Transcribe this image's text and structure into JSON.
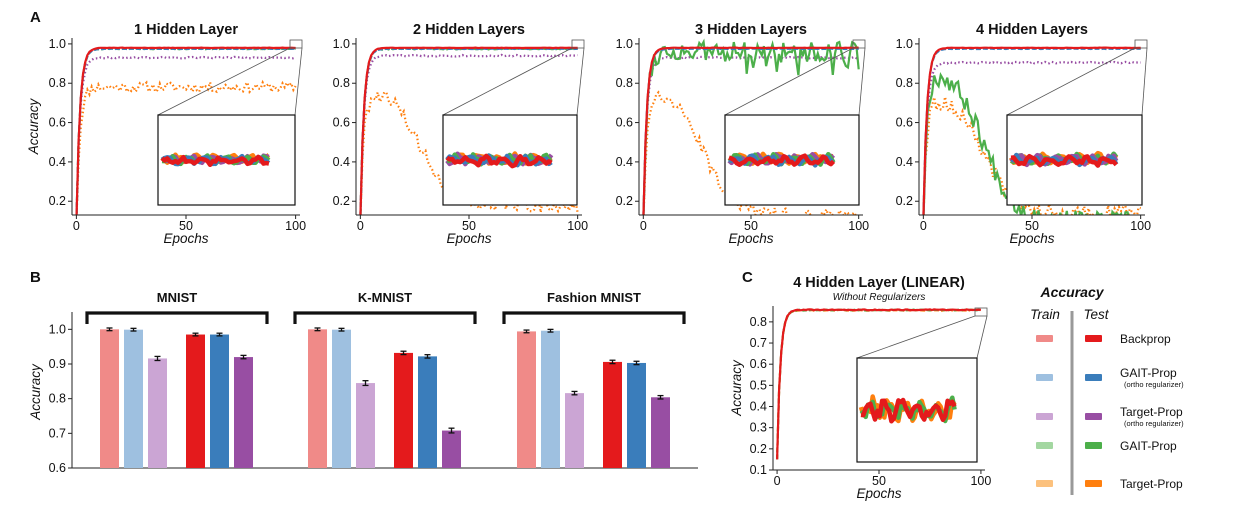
{
  "panel_letters": {
    "a": "A",
    "b": "B",
    "c": "C"
  },
  "colors": {
    "backprop_test": "#e41a1c",
    "backprop_train": "#f08a88",
    "gait_test": "#3a7dbb",
    "gait_train": "#9ec0e0",
    "target_test": "#984ea3",
    "target_train": "#cba5d4",
    "gait_nr_test": "#4caf4a",
    "gait_nr_train": "#a3d7a1",
    "target_nr_test": "#ff7f0e",
    "target_nr_train": "#fcc17d"
  },
  "chart_data": [
    {
      "id": "A1",
      "type": "line",
      "title": "1 Hidden Layer",
      "xlabel": "Epochs",
      "ylabel": "Accuracy",
      "xlim": [
        -2,
        102
      ],
      "ylim": [
        0.13,
        1.03
      ],
      "xticks": [
        "0",
        "50",
        "100"
      ],
      "yticks": [
        "0.2",
        "0.4",
        "0.6",
        "0.8",
        "1.0"
      ],
      "series": [
        {
          "key": "target_nr",
          "color": "#ff7f0e",
          "style": "dotted",
          "start": 0.1,
          "plateau": 0.78,
          "noise": 0.025
        },
        {
          "key": "target",
          "color": "#984ea3",
          "style": "dotted",
          "start": 0.1,
          "plateau": 0.93,
          "noise": 0.004
        },
        {
          "key": "gait_nr",
          "color": "#4caf4a",
          "style": "dashed",
          "start": 0.1,
          "plateau": 0.975,
          "noise": 0.002
        },
        {
          "key": "gait",
          "color": "#3a7dbb",
          "style": "dashed",
          "start": 0.1,
          "plateau": 0.975,
          "noise": 0.001
        },
        {
          "key": "backprop",
          "color": "#e41a1c",
          "style": "solid",
          "start": 0.1,
          "plateau": 0.98,
          "noise": 0.001
        }
      ]
    },
    {
      "id": "A2",
      "type": "line",
      "title": "2 Hidden Layers",
      "xlabel": "Epochs",
      "ylabel": "",
      "xlim": [
        -2,
        102
      ],
      "ylim": [
        0.13,
        1.03
      ],
      "xticks": [
        "0",
        "50",
        "100"
      ],
      "yticks": [
        "0.2",
        "0.4",
        "0.6",
        "0.8",
        "1.0"
      ],
      "series": [
        {
          "key": "target_nr",
          "color": "#ff7f0e",
          "style": "dotted",
          "start": 0.1,
          "peak": 0.77,
          "end": 0.18,
          "noise": 0.04
        },
        {
          "key": "target",
          "color": "#984ea3",
          "style": "dotted",
          "start": 0.1,
          "plateau": 0.94,
          "noise": 0.004
        },
        {
          "key": "gait_nr",
          "color": "#4caf4a",
          "style": "dashed",
          "start": 0.1,
          "plateau": 0.975,
          "noise": 0.003
        },
        {
          "key": "gait",
          "color": "#3a7dbb",
          "style": "dashed",
          "start": 0.1,
          "plateau": 0.975,
          "noise": 0.001
        },
        {
          "key": "backprop",
          "color": "#e41a1c",
          "style": "solid",
          "start": 0.1,
          "plateau": 0.98,
          "noise": 0.001
        }
      ]
    },
    {
      "id": "A3",
      "type": "line",
      "title": "3 Hidden Layers",
      "xlabel": "Epochs",
      "ylabel": "",
      "xlim": [
        -2,
        102
      ],
      "ylim": [
        0.13,
        1.03
      ],
      "xticks": [
        "0",
        "50",
        "100"
      ],
      "yticks": [
        "0.2",
        "0.4",
        "0.6",
        "0.8",
        "1.0"
      ],
      "series": [
        {
          "key": "target_nr",
          "color": "#ff7f0e",
          "style": "dotted",
          "start": 0.1,
          "peak": 0.77,
          "end": 0.13,
          "noise": 0.03
        },
        {
          "key": "target",
          "color": "#984ea3",
          "style": "dotted",
          "start": 0.1,
          "plateau": 0.93,
          "noise": 0.004
        },
        {
          "key": "gait_nr",
          "color": "#4caf4a",
          "style": "solid",
          "start": 0.1,
          "plateau": 0.96,
          "noise": 0.05,
          "unstable_from": 35
        },
        {
          "key": "gait",
          "color": "#3a7dbb",
          "style": "dashed",
          "start": 0.1,
          "plateau": 0.975,
          "noise": 0.001
        },
        {
          "key": "backprop",
          "color": "#e41a1c",
          "style": "solid",
          "start": 0.1,
          "plateau": 0.98,
          "noise": 0.001
        }
      ]
    },
    {
      "id": "A4",
      "type": "line",
      "title": "4 Hidden Layers",
      "xlabel": "Epochs",
      "ylabel": "",
      "xlim": [
        -2,
        102
      ],
      "ylim": [
        0.13,
        1.03
      ],
      "xticks": [
        "0",
        "50",
        "100"
      ],
      "yticks": [
        "0.2",
        "0.4",
        "0.6",
        "0.8",
        "1.0"
      ],
      "series": [
        {
          "key": "target_nr",
          "color": "#ff7f0e",
          "style": "dotted",
          "start": 0.1,
          "peak": 0.74,
          "end": 0.14,
          "noise": 0.04
        },
        {
          "key": "gait_nr",
          "color": "#4caf4a",
          "style": "solid",
          "start": 0.1,
          "peak": 0.88,
          "end": 0.1,
          "noise": 0.05
        },
        {
          "key": "target",
          "color": "#984ea3",
          "style": "dotted",
          "start": 0.1,
          "plateau": 0.905,
          "noise": 0.004
        },
        {
          "key": "gait",
          "color": "#3a7dbb",
          "style": "dashed",
          "start": 0.1,
          "plateau": 0.975,
          "noise": 0.001
        },
        {
          "key": "backprop",
          "color": "#e41a1c",
          "style": "solid",
          "start": 0.1,
          "plateau": 0.98,
          "noise": 0.001
        }
      ]
    },
    {
      "id": "B",
      "type": "bar",
      "title": "",
      "ylabel": "Accuracy",
      "ylim": [
        0.6,
        1.05
      ],
      "yticks": [
        "0.6",
        "0.7",
        "0.8",
        "0.9",
        "1.0"
      ],
      "groups": [
        {
          "name": "MNIST",
          "bars": [
            {
              "key": "backprop_train",
              "value": 1.0,
              "err": 0.001
            },
            {
              "key": "gait_train",
              "value": 0.999,
              "err": 0.001
            },
            {
              "key": "target_train",
              "value": 0.916,
              "err": 0.003
            },
            {
              "key": "backprop_test",
              "value": 0.985,
              "err": 0.001
            },
            {
              "key": "gait_test",
              "value": 0.985,
              "err": 0.001
            },
            {
              "key": "target_test",
              "value": 0.92,
              "err": 0.002
            }
          ]
        },
        {
          "name": "K-MNIST",
          "bars": [
            {
              "key": "backprop_train",
              "value": 1.0,
              "err": 0.001
            },
            {
              "key": "gait_train",
              "value": 0.999,
              "err": 0.001
            },
            {
              "key": "target_train",
              "value": 0.845,
              "err": 0.004
            },
            {
              "key": "backprop_test",
              "value": 0.932,
              "err": 0.002
            },
            {
              "key": "gait_test",
              "value": 0.922,
              "err": 0.002
            },
            {
              "key": "target_test",
              "value": 0.708,
              "err": 0.004
            }
          ]
        },
        {
          "name": "Fashion MNIST",
          "bars": [
            {
              "key": "backprop_train",
              "value": 0.994,
              "err": 0.001
            },
            {
              "key": "gait_train",
              "value": 0.996,
              "err": 0.001
            },
            {
              "key": "target_train",
              "value": 0.816,
              "err": 0.002
            },
            {
              "key": "backprop_test",
              "value": 0.906,
              "err": 0.002
            },
            {
              "key": "gait_test",
              "value": 0.903,
              "err": 0.002
            },
            {
              "key": "target_test",
              "value": 0.804,
              "err": 0.002
            }
          ]
        }
      ]
    },
    {
      "id": "C",
      "type": "line",
      "title": "4 Hidden Layer (LINEAR)",
      "subtitle": "Without Regularizers",
      "xlabel": "Epochs",
      "ylabel": "Accuracy",
      "xlim": [
        -2,
        102
      ],
      "ylim": [
        0.1,
        0.875
      ],
      "xticks": [
        "0",
        "50",
        "100"
      ],
      "yticks": [
        "0.1",
        "0.2",
        "0.3",
        "0.4",
        "0.5",
        "0.6",
        "0.7",
        "0.8"
      ],
      "series": [
        {
          "key": "target_nr",
          "color": "#ff7f0e",
          "style": "dashed",
          "start": 0.15,
          "plateau": 0.855,
          "noise": 0.002
        },
        {
          "key": "gait_nr",
          "color": "#4caf4a",
          "style": "dashed",
          "start": 0.15,
          "plateau": 0.856,
          "noise": 0.002
        },
        {
          "key": "backprop",
          "color": "#e41a1c",
          "style": "solid",
          "start": 0.15,
          "plateau": 0.857,
          "noise": 0.002
        }
      ]
    }
  ],
  "legend": {
    "title": "Accuracy",
    "train_label": "Train",
    "test_label": "Test",
    "entries": [
      {
        "name": "Backprop",
        "sub": "",
        "train": "#f08a88",
        "test": "#e41a1c"
      },
      {
        "name": "GAIT-Prop",
        "sub": "(ortho regularizer)",
        "train": "#9ec0e0",
        "test": "#3a7dbb"
      },
      {
        "name": "Target-Prop",
        "sub": "(ortho regularizer)",
        "train": "#cba5d4",
        "test": "#984ea3"
      },
      {
        "name": "GAIT-Prop",
        "sub": "",
        "train": "#a3d7a1",
        "test": "#4caf4a"
      },
      {
        "name": "Target-Prop",
        "sub": "",
        "train": "#fcc17d",
        "test": "#ff7f0e"
      }
    ]
  }
}
